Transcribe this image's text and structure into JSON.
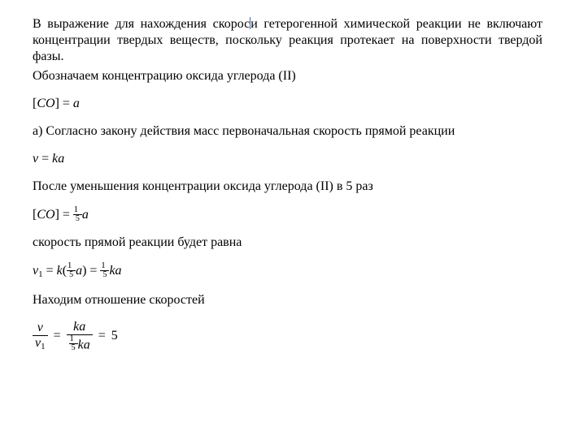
{
  "colors": {
    "text": "#000000",
    "background": "#ffffff",
    "cursor": "#4a6aa5"
  },
  "typography": {
    "font_family": "Times New Roman",
    "body_size_pt": 12,
    "equation_style": "italic",
    "line_height": 1.25
  },
  "para1_a": "В выражение для нахождения скорос",
  "para1_b": "и гетерогенной химической реакции не включают концентрации твердых веществ, поскольку реакция протекает на поверхности твердой фазы.",
  "para2": "Обозначаем концентрацию оксида углерода (II)",
  "eq1_lhs_open": "[",
  "eq1_co": "CO",
  "eq1_lhs_close": "]",
  "eq1_eq": "=",
  "eq1_rhs": "a",
  "para3": "а) Согласно закону действия масс первоначальная скорость прямой реакции",
  "eq2_v": "v",
  "eq2_eq": "=",
  "eq2_rhs": "ka",
  "para4": "После уменьшения концентрации оксида углерода (II) в 5 раз",
  "eq3_lhs_open": "[",
  "eq3_co": "CO",
  "eq3_lhs_close": "]",
  "eq3_eq": "=",
  "onefifth_num": "1",
  "onefifth_den": "5",
  "eq3_rhs_a": "a",
  "para5": "скорость прямой реакции будет равна",
  "eq4_v": "v",
  "eq4_sub": "1",
  "eq4_eq1": "=",
  "eq4_k": "k",
  "eq4_open": "(",
  "eq4_a": "a",
  "eq4_close": ")",
  "eq4_eq2": "=",
  "eq4_ka": "ka",
  "para6": "Находим отношение скоростей",
  "eq5_frac1_num": "v",
  "eq5_frac1_den_v": "v",
  "eq5_frac1_den_sub": "1",
  "eq5_eq1": "=",
  "eq5_frac2_num": "ka",
  "eq5_frac2_den_ka": "ka",
  "eq5_eq2": "=",
  "eq5_rhs": "5"
}
